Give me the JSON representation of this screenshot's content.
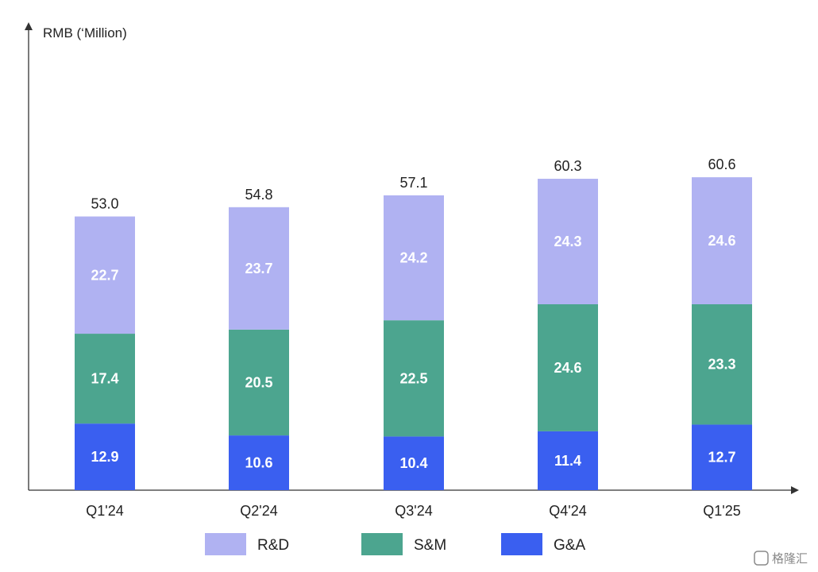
{
  "chart_data": {
    "type": "bar",
    "stacked": true,
    "ylabel": "RMB (‘Million)",
    "categories": [
      "Q1'24",
      "Q2'24",
      "Q3'24",
      "Q4'24",
      "Q1'25"
    ],
    "series": [
      {
        "name": "G&A",
        "color": "#3a5ff0",
        "values": [
          12.9,
          10.6,
          10.4,
          11.4,
          12.7
        ]
      },
      {
        "name": "S&M",
        "color": "#4ca58f",
        "values": [
          17.4,
          20.5,
          22.5,
          24.6,
          23.3
        ]
      },
      {
        "name": "R&D",
        "color": "#b0b2f2",
        "values": [
          22.7,
          23.7,
          24.2,
          24.3,
          24.6
        ]
      }
    ],
    "totals": [
      "53.0",
      "54.8",
      "57.1",
      "60.3",
      "60.6"
    ],
    "legend": {
      "placement": "bottom",
      "items": [
        {
          "name": "R&D",
          "color": "#b0b2f2"
        },
        {
          "name": "S&M",
          "color": "#4ca58f"
        },
        {
          "name": "G&A",
          "color": "#3a5ff0"
        }
      ]
    },
    "grid": false
  },
  "watermark": {
    "text": "格隆汇"
  }
}
